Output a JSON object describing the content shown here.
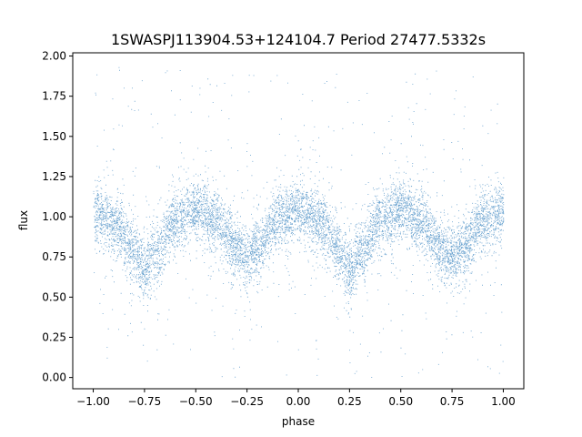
{
  "chart_data": {
    "type": "scatter",
    "title": "1SWASPJ113904.53+124104.7 Period 27477.5332s",
    "xlabel": "phase",
    "ylabel": "flux",
    "xlim": [
      -1.1,
      1.1
    ],
    "ylim": [
      -0.07,
      2.02
    ],
    "x_ticks": [
      -1.0,
      -0.75,
      -0.5,
      -0.25,
      0.0,
      0.25,
      0.5,
      0.75,
      1.0
    ],
    "x_tick_labels": [
      "−1.00",
      "−0.75",
      "−0.50",
      "−0.25",
      "0.00",
      "0.25",
      "0.50",
      "0.75",
      "1.00"
    ],
    "y_ticks": [
      0.0,
      0.25,
      0.5,
      0.75,
      1.0,
      1.25,
      1.5,
      1.75,
      2.0
    ],
    "y_tick_labels": [
      "0.00",
      "0.25",
      "0.50",
      "0.75",
      "1.00",
      "1.25",
      "1.50",
      "1.75",
      "2.00"
    ],
    "grid": false,
    "legend": "none",
    "series": [
      {
        "color": "#4b8fc6",
        "marker_size": "very small",
        "x_range": [
          -1.0,
          1.0
        ],
        "trend": {
          "phase": [
            -1.0,
            -0.9,
            -0.8,
            -0.75,
            -0.7,
            -0.6,
            -0.5,
            -0.4,
            -0.3,
            -0.25,
            -0.2,
            -0.1,
            0.0,
            0.1,
            0.2,
            0.25,
            0.3,
            0.4,
            0.5,
            0.6,
            0.7,
            0.75,
            0.8,
            0.9,
            1.0
          ],
          "flux": [
            1.02,
            0.96,
            0.78,
            0.68,
            0.78,
            0.98,
            1.05,
            0.97,
            0.8,
            0.74,
            0.82,
            0.98,
            1.05,
            0.97,
            0.79,
            0.67,
            0.78,
            0.98,
            1.05,
            0.96,
            0.8,
            0.74,
            0.82,
            0.98,
            1.03
          ]
        },
        "scatter_spread": 0.09,
        "outlier_range": [
          0.0,
          1.95
        ]
      }
    ]
  }
}
